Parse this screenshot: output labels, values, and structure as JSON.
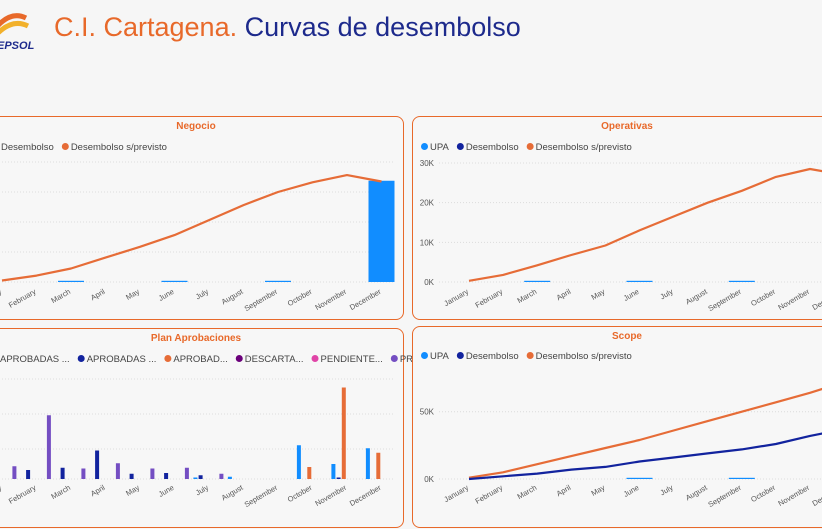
{
  "brand": {
    "logo_text": "EPSOL",
    "sun_color": "#e8692a",
    "sun_color2": "#f2b12b",
    "logo_text_color": "#1d2a8c"
  },
  "header": {
    "title_part1": "C.I. Cartagena.",
    "title_part2": "Curvas de desembolso"
  },
  "colors": {
    "upa": "#118dff",
    "desembolso": "#12239e",
    "previsto": "#e66c37",
    "descartadas": "#6b007b",
    "pendientes": "#e044a7",
    "previstas": "#744ec2",
    "grid": "#dcdcdc",
    "axis_text": "#555555"
  },
  "chart_data": [
    {
      "id": "negocio",
      "type": "bar+line",
      "title": "Negocio",
      "legend": [
        {
          "label": "Desembolso",
          "color": "#12239e"
        },
        {
          "label": "Desembolso s/previsto",
          "color": "#e66c37"
        }
      ],
      "categories": [
        "January",
        "February",
        "March",
        "April",
        "May",
        "June",
        "July",
        "August",
        "September",
        "October",
        "November",
        "December"
      ],
      "bars": [
        0,
        0,
        0.1,
        0,
        0,
        0.1,
        0,
        0,
        0.2,
        0,
        0,
        27
      ],
      "line": [
        0.4,
        1.7,
        3.6,
        6.5,
        9.4,
        12.5,
        16.5,
        20.5,
        24.0,
        26.6,
        28.5,
        26.8
      ],
      "ylim": [
        0,
        32
      ]
    },
    {
      "id": "operativas",
      "type": "bar+line",
      "title": "Operativas",
      "legend": [
        {
          "label": "UPA",
          "color": "#118dff"
        },
        {
          "label": "Desembolso",
          "color": "#12239e"
        },
        {
          "label": "Desembolso s/previsto",
          "color": "#e66c37"
        }
      ],
      "y_ticks": [
        "0K",
        "10K",
        "20K",
        "30K"
      ],
      "y_tick_values": [
        0,
        10000,
        20000,
        30000
      ],
      "categories": [
        "January",
        "February",
        "March",
        "April",
        "May",
        "June",
        "July",
        "August",
        "September",
        "October",
        "November",
        "December"
      ],
      "bars": [
        0,
        0,
        150,
        0,
        0,
        150,
        0,
        0,
        150,
        0,
        0,
        27000
      ],
      "line": [
        300,
        1800,
        4200,
        6800,
        9200,
        13000,
        16500,
        20000,
        23000,
        26500,
        28500,
        27000
      ],
      "ylim": [
        0,
        30000
      ]
    },
    {
      "id": "plan",
      "type": "grouped-bar",
      "title": "Plan Aprobaciones",
      "legend": [
        {
          "label": "APROBADAS ...",
          "color": "#118dff"
        },
        {
          "label": "APROBADAS ...",
          "color": "#12239e"
        },
        {
          "label": "APROBAD...",
          "color": "#e66c37"
        },
        {
          "label": "DESCARTA...",
          "color": "#6b007b"
        },
        {
          "label": "PENDIENTE...",
          "color": "#e044a7"
        },
        {
          "label": "PREVISTAS ...",
          "color": "#744ec2"
        }
      ],
      "categories": [
        "January",
        "February",
        "March",
        "April",
        "May",
        "June",
        "July",
        "August",
        "September",
        "October",
        "November",
        "December"
      ],
      "series": [
        {
          "name": "APROBADAS 1",
          "color": "#118dff",
          "values": [
            0,
            0,
            0,
            0,
            0,
            0,
            0.2,
            0.3,
            0,
            4.5,
            2.0,
            4.1
          ]
        },
        {
          "name": "APROBADAS 2",
          "color": "#12239e",
          "values": [
            2.6,
            1.2,
            1.5,
            3.8,
            0.7,
            0.8,
            0.5,
            0,
            0,
            0,
            0.2,
            0
          ]
        },
        {
          "name": "APROBADAS 3",
          "color": "#e66c37",
          "values": [
            0,
            0,
            0,
            0,
            0,
            0,
            0,
            0,
            0,
            1.6,
            12.2,
            3.5
          ]
        },
        {
          "name": "DESCARTADAS",
          "color": "#6b007b",
          "values": [
            0,
            0,
            0,
            0,
            0,
            0,
            0,
            0,
            0,
            0,
            0,
            0
          ]
        },
        {
          "name": "PENDIENTES",
          "color": "#e044a7",
          "values": [
            0,
            0,
            0,
            0,
            0,
            0,
            0,
            0,
            0,
            0,
            0,
            0
          ]
        },
        {
          "name": "PREVISTAS",
          "color": "#744ec2",
          "values": [
            1.7,
            8.5,
            1.4,
            2.1,
            1.4,
            1.5,
            0.7,
            0,
            0,
            0,
            0,
            0
          ]
        }
      ],
      "ylim": [
        0,
        14
      ]
    },
    {
      "id": "scope",
      "type": "bar+lines",
      "title": "Scope",
      "legend": [
        {
          "label": "UPA",
          "color": "#118dff"
        },
        {
          "label": "Desembolso",
          "color": "#12239e"
        },
        {
          "label": "Desembolso s/previsto",
          "color": "#e66c37"
        }
      ],
      "y_ticks": [
        "0K",
        "50K"
      ],
      "y_tick_values": [
        0,
        50000
      ],
      "categories": [
        "January",
        "February",
        "March",
        "April",
        "May",
        "June",
        "July",
        "August",
        "September",
        "October",
        "November",
        "December"
      ],
      "bars": [
        0,
        0,
        0,
        0,
        0,
        200,
        0,
        0,
        200,
        0,
        0,
        75000
      ],
      "line_desembolso": [
        0,
        2000,
        4000,
        7000,
        9000,
        13000,
        16000,
        19000,
        22000,
        26000,
        32000,
        37000
      ],
      "line_previsto": [
        1000,
        5000,
        11000,
        17000,
        23000,
        29000,
        36000,
        43000,
        50000,
        57000,
        64000,
        72000
      ],
      "ylim": [
        0,
        78000
      ]
    }
  ]
}
